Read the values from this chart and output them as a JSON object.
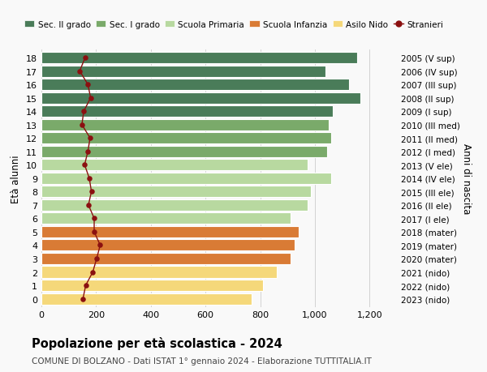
{
  "ages": [
    18,
    17,
    16,
    15,
    14,
    13,
    12,
    11,
    10,
    9,
    8,
    7,
    6,
    5,
    4,
    3,
    2,
    1,
    0
  ],
  "right_labels": [
    "2005 (V sup)",
    "2006 (IV sup)",
    "2007 (III sup)",
    "2008 (II sup)",
    "2009 (I sup)",
    "2010 (III med)",
    "2011 (II med)",
    "2012 (I med)",
    "2013 (V ele)",
    "2014 (IV ele)",
    "2015 (III ele)",
    "2016 (II ele)",
    "2017 (I ele)",
    "2018 (mater)",
    "2019 (mater)",
    "2020 (mater)",
    "2021 (nido)",
    "2022 (nido)",
    "2023 (nido)"
  ],
  "bar_values": [
    1155,
    1040,
    1125,
    1165,
    1065,
    1050,
    1060,
    1045,
    975,
    1060,
    985,
    975,
    910,
    940,
    925,
    910,
    860,
    810,
    770
  ],
  "bar_colors": [
    "#4a7c59",
    "#4a7c59",
    "#4a7c59",
    "#4a7c59",
    "#4a7c59",
    "#7aaa6a",
    "#7aaa6a",
    "#7aaa6a",
    "#b8d9a0",
    "#b8d9a0",
    "#b8d9a0",
    "#b8d9a0",
    "#b8d9a0",
    "#d97b35",
    "#d97b35",
    "#d97b35",
    "#f5d87a",
    "#f5d87a",
    "#f5d87a"
  ],
  "stranieri_values": [
    160,
    140,
    170,
    180,
    155,
    148,
    178,
    170,
    158,
    175,
    183,
    172,
    193,
    193,
    215,
    202,
    188,
    162,
    152
  ],
  "ylabel": "Età alunni",
  "right_ylabel": "Anni di nascita",
  "title": "Popolazione per età scolastica - 2024",
  "subtitle": "COMUNE DI BOLZANO - Dati ISTAT 1° gennaio 2024 - Elaborazione TUTTITALIA.IT",
  "xlim": [
    0,
    1300
  ],
  "xticks": [
    0,
    200,
    400,
    600,
    800,
    1000,
    1200
  ],
  "xtick_labels": [
    "0",
    "200",
    "400",
    "600",
    "800",
    "1,000",
    "1,200"
  ],
  "legend_labels": [
    "Sec. II grado",
    "Sec. I grado",
    "Scuola Primaria",
    "Scuola Infanzia",
    "Asilo Nido",
    "Stranieri"
  ],
  "legend_colors": [
    "#4a7c59",
    "#7aaa6a",
    "#b8d9a0",
    "#d97b35",
    "#f5d87a",
    "#8b1010"
  ],
  "bg_color": "#f9f9f9",
  "grid_color": "#cccccc",
  "stranieri_color": "#8b1010",
  "bar_edgecolor": "#ffffff",
  "bar_linewidth": 0.8
}
